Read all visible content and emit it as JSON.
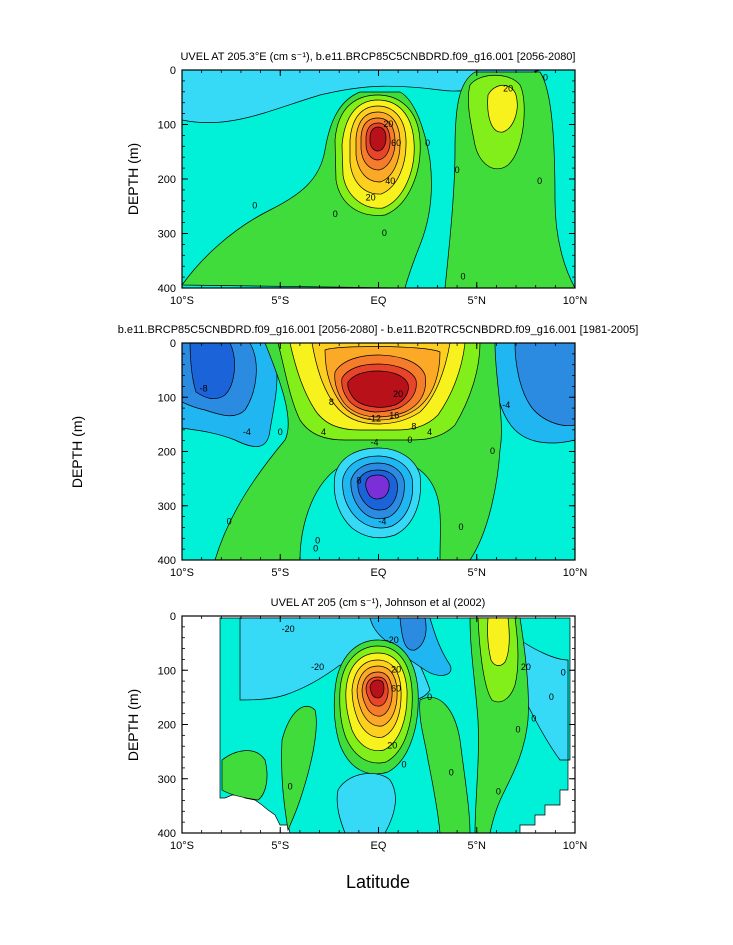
{
  "chart_data": [
    {
      "type": "contour",
      "title": "UVEL AT 205.3°E (cm s⁻¹), b.e11.BRCP85C5CNBDRD.f09_g16.001 [2056-2080]",
      "ylabel": "DEPTH (m)",
      "xlabel": "",
      "x_ticks": [
        "10°S",
        "5°S",
        "EQ",
        "5°N",
        "10°N"
      ],
      "x_range": [
        -10,
        10
      ],
      "y_ticks": [
        "0",
        "100",
        "200",
        "300",
        "400"
      ],
      "y_range": [
        0,
        400
      ],
      "y_inverted": true,
      "contour_labels": [
        {
          "text": "0",
          "lat": -6.3,
          "depth": 250
        },
        {
          "text": "0",
          "lat": -2.2,
          "depth": 265
        },
        {
          "text": "0",
          "lat": 0.3,
          "depth": 300
        },
        {
          "text": "20",
          "lat": -0.4,
          "depth": 235
        },
        {
          "text": "40",
          "lat": 0.6,
          "depth": 205
        },
        {
          "text": "20",
          "lat": 0.5,
          "depth": 100
        },
        {
          "text": "60",
          "lat": 0.9,
          "depth": 135
        },
        {
          "text": "0",
          "lat": 2.5,
          "depth": 135
        },
        {
          "text": "0",
          "lat": 4.0,
          "depth": 185
        },
        {
          "text": "0",
          "lat": 4.3,
          "depth": 380
        },
        {
          "text": "20",
          "lat": 6.6,
          "depth": 35
        },
        {
          "text": "0",
          "lat": 8.5,
          "depth": 15
        },
        {
          "text": "0",
          "lat": 8.2,
          "depth": 205
        }
      ]
    },
    {
      "type": "contour",
      "title": "b.e11.BRCP85C5CNBDRD.f09_g16.001 [2056-2080] - b.e11.B20TRC5CNBDRD.f09_g16.001 [1981-2005]",
      "ylabel": "DEPTH (m)",
      "xlabel": "",
      "x_ticks": [
        "10°S",
        "5°S",
        "EQ",
        "5°N",
        "10°N"
      ],
      "x_range": [
        -10,
        10
      ],
      "y_ticks": [
        "0",
        "100",
        "200",
        "300",
        "400"
      ],
      "y_range": [
        0,
        400
      ],
      "y_inverted": true,
      "contour_labels": [
        {
          "text": "-8",
          "lat": -8.9,
          "depth": 85
        },
        {
          "text": "-4",
          "lat": -6.7,
          "depth": 165
        },
        {
          "text": "0",
          "lat": -5.0,
          "depth": 165
        },
        {
          "text": "4",
          "lat": -2.8,
          "depth": 165
        },
        {
          "text": "8",
          "lat": -2.4,
          "depth": 110
        },
        {
          "text": "20",
          "lat": 1.0,
          "depth": 95
        },
        {
          "text": "-12",
          "lat": -0.2,
          "depth": 140
        },
        {
          "text": "16",
          "lat": 0.8,
          "depth": 135
        },
        {
          "text": "8",
          "lat": 1.8,
          "depth": 155
        },
        {
          "text": "4",
          "lat": 2.6,
          "depth": 165
        },
        {
          "text": "-4",
          "lat": -0.2,
          "depth": 185
        },
        {
          "text": "0",
          "lat": 1.6,
          "depth": 180
        },
        {
          "text": "8",
          "lat": -1.0,
          "depth": 255
        },
        {
          "text": "-4",
          "lat": 0.2,
          "depth": 330
        },
        {
          "text": "0",
          "lat": -7.6,
          "depth": 330
        },
        {
          "text": "0",
          "lat": -3.1,
          "depth": 365
        },
        {
          "text": "0",
          "lat": -3.2,
          "depth": 380
        },
        {
          "text": "0",
          "lat": 5.8,
          "depth": 200
        },
        {
          "text": "0",
          "lat": 4.2,
          "depth": 340
        },
        {
          "text": "-4",
          "lat": 6.5,
          "depth": 115
        }
      ]
    },
    {
      "type": "contour",
      "title": "UVEL AT 205 (cm s⁻¹), Johnson et al (2002)",
      "ylabel": "DEPTH (m)",
      "xlabel": "Latitude",
      "x_ticks": [
        "10°S",
        "5°S",
        "EQ",
        "5°N",
        "10°N"
      ],
      "x_range": [
        -10,
        10
      ],
      "y_ticks": [
        "0",
        "100",
        "200",
        "300",
        "400"
      ],
      "y_range": [
        0,
        400
      ],
      "y_inverted": true,
      "contour_labels": [
        {
          "text": "-20",
          "lat": -4.6,
          "depth": 25
        },
        {
          "text": "-20",
          "lat": -3.1,
          "depth": 95
        },
        {
          "text": "-20",
          "lat": 0.7,
          "depth": 45
        },
        {
          "text": "20",
          "lat": 0.9,
          "depth": 100
        },
        {
          "text": "60",
          "lat": 0.9,
          "depth": 135
        },
        {
          "text": "20",
          "lat": 0.7,
          "depth": 240
        },
        {
          "text": "0",
          "lat": 2.6,
          "depth": 150
        },
        {
          "text": "0",
          "lat": 1.3,
          "depth": 275
        },
        {
          "text": "0",
          "lat": -4.5,
          "depth": 315
        },
        {
          "text": "0",
          "lat": 3.7,
          "depth": 290
        },
        {
          "text": "0",
          "lat": 6.1,
          "depth": 325
        },
        {
          "text": "20",
          "lat": 7.5,
          "depth": 95
        },
        {
          "text": "0",
          "lat": 9.4,
          "depth": 105
        },
        {
          "text": "0",
          "lat": 8.8,
          "depth": 150
        },
        {
          "text": "0",
          "lat": 7.9,
          "depth": 190
        },
        {
          "text": "0",
          "lat": 7.1,
          "depth": 210
        }
      ]
    }
  ],
  "colors": {
    "fill_-60": "#7b2fd6",
    "fill_-12": "#1b63d9",
    "fill_-8": "#2a8be0",
    "fill_-4": "#1fb6f1",
    "fill_-20": "#36d9f6",
    "fill_0a": "#00f0d8",
    "fill_0b": "#00e8b0",
    "fill_4": "#3fdc3c",
    "fill_8": "#82ee1a",
    "fill_16": "#f7f21d",
    "fill_20": "#fdd020",
    "fill_30": "#fba927",
    "fill_40": "#f47c2a",
    "fill_50": "#e8442a",
    "fill_60": "#b8111a"
  }
}
